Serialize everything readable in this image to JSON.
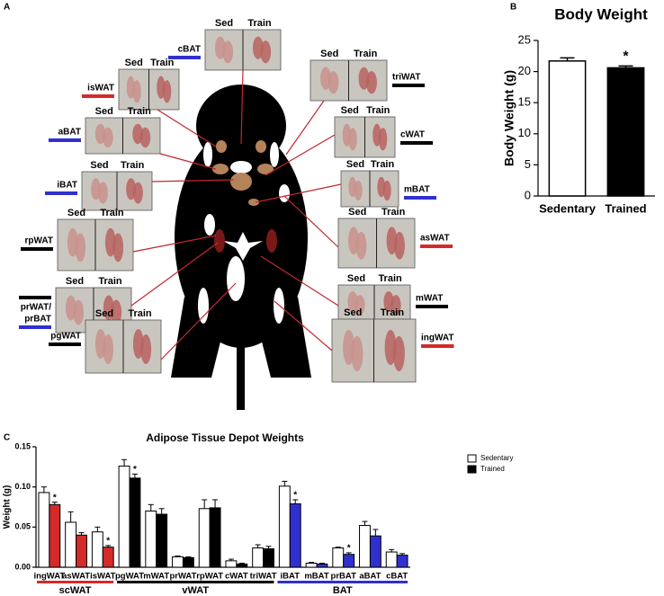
{
  "panel_labels": [
    "A",
    "B",
    "C"
  ],
  "diagram": {
    "photos": [
      {
        "name_lines": [
          "cBAT"
        ],
        "bar_colors": [
          "#3030d0"
        ],
        "left": "Sed",
        "right": "Train"
      },
      {
        "name_lines": [
          "isWAT"
        ],
        "bar_colors": [
          "#d42a2a"
        ],
        "left": "Sed",
        "right": "Train"
      },
      {
        "name_lines": [
          "aBAT"
        ],
        "bar_colors": [
          "#3030d0"
        ],
        "left": "Sed",
        "right": "Train"
      },
      {
        "name_lines": [
          "iBAT"
        ],
        "bar_colors": [
          "#3030d0"
        ],
        "left": "Sed",
        "right": "Train"
      },
      {
        "name_lines": [
          "rpWAT"
        ],
        "bar_colors": [
          "#000000"
        ],
        "left": "Sed",
        "right": "Train"
      },
      {
        "name_lines": [
          "prWAT/",
          "prBAT"
        ],
        "bar_colors": [
          "#000000",
          "#3030d0"
        ],
        "left": "Sed",
        "right": "Train"
      },
      {
        "name_lines": [
          "pgWAT"
        ],
        "bar_colors": [
          "#000000"
        ],
        "left": "Sed",
        "right": "Train"
      },
      {
        "name_lines": [
          "triWAT"
        ],
        "bar_colors": [
          "#000000"
        ],
        "left": "Sed",
        "right": "Train"
      },
      {
        "name_lines": [
          "cWAT"
        ],
        "bar_colors": [
          "#000000"
        ],
        "left": "Sed",
        "right": "Train"
      },
      {
        "name_lines": [
          "mBAT"
        ],
        "bar_colors": [
          "#3030d0"
        ],
        "left": "Sed",
        "right": "Train"
      },
      {
        "name_lines": [
          "asWAT"
        ],
        "bar_colors": [
          "#d42a2a"
        ],
        "left": "Sed",
        "right": "Train"
      },
      {
        "name_lines": [
          "mWAT"
        ],
        "bar_colors": [
          "#000000"
        ],
        "left": "Sed",
        "right": "Train"
      },
      {
        "name_lines": [
          "ingWAT"
        ],
        "bar_colors": [
          "#d42a2a"
        ],
        "left": "Sed",
        "right": "Train"
      }
    ]
  },
  "chart_data": [
    {
      "type": "bar",
      "title": "Body Weight",
      "ylabel": "Body Weight (g)",
      "categories": [
        "Sedentary",
        "Trained"
      ],
      "values": [
        21.7,
        20.6
      ],
      "errors": [
        0.5,
        0.3
      ],
      "colors": [
        "#ffffff",
        "#000000"
      ],
      "annotations": [
        null,
        "*"
      ],
      "ylim": [
        0,
        25
      ],
      "yticks": [
        0,
        5,
        10,
        15,
        20,
        25
      ]
    },
    {
      "type": "grouped-bar",
      "title": "Adipose Tissue Depot Weights",
      "ylabel": "Weight (g)",
      "categories": [
        "ingWAT",
        "asWAT",
        "isWAT",
        "pgWAT",
        "mWAT",
        "prWAT",
        "rpWAT",
        "cWAT",
        "triWAT",
        "iBAT",
        "mBAT",
        "prBAT",
        "aBAT",
        "cBAT"
      ],
      "series": [
        {
          "name": "Sedentary",
          "color": "#ffffff",
          "values": [
            0.093,
            0.056,
            0.044,
            0.126,
            0.07,
            0.013,
            0.073,
            0.008,
            0.024,
            0.101,
            0.005,
            0.024,
            0.052,
            0.019
          ],
          "errors": [
            0.007,
            0.013,
            0.006,
            0.008,
            0.008,
            0.001,
            0.011,
            0.002,
            0.004,
            0.006,
            0.001,
            0.001,
            0.005,
            0.003
          ]
        },
        {
          "name": "Trained",
          "color": "#000000",
          "bar_colors": [
            "#d42a2a",
            "#d42a2a",
            "#d42a2a",
            "#000000",
            "#000000",
            "#000000",
            "#000000",
            "#000000",
            "#000000",
            "#3030d0",
            "#3030d0",
            "#3030d0",
            "#3030d0",
            "#3030d0"
          ],
          "values": [
            0.078,
            0.04,
            0.025,
            0.111,
            0.066,
            0.012,
            0.074,
            0.004,
            0.023,
            0.079,
            0.004,
            0.016,
            0.039,
            0.015
          ],
          "errors": [
            0.003,
            0.003,
            0.002,
            0.005,
            0.007,
            0.001,
            0.01,
            0.001,
            0.003,
            0.005,
            0.001,
            0.002,
            0.008,
            0.002
          ],
          "annotations": [
            "*",
            null,
            "*",
            "*",
            null,
            null,
            null,
            null,
            null,
            "*",
            null,
            "*",
            null,
            null
          ]
        }
      ],
      "groups": [
        {
          "label": "scWAT",
          "color": "#d42a2a",
          "categories": [
            "ingWAT",
            "asWAT",
            "isWAT"
          ]
        },
        {
          "label": "vWAT",
          "color": "#000000",
          "categories": [
            "pgWAT",
            "mWAT",
            "prWAT",
            "rpWAT",
            "cWAT",
            "triWAT"
          ]
        },
        {
          "label": "BAT",
          "color": "#3030d0",
          "categories": [
            "iBAT",
            "mBAT",
            "prBAT",
            "aBAT",
            "cBAT"
          ]
        }
      ],
      "legend": "upper right",
      "ylim": [
        0,
        0.15
      ],
      "yticks": [
        {
          "value": 0,
          "label": "0.00"
        },
        0.05,
        {
          "value": 0.1,
          "label": "0.10"
        },
        0.15
      ]
    }
  ]
}
